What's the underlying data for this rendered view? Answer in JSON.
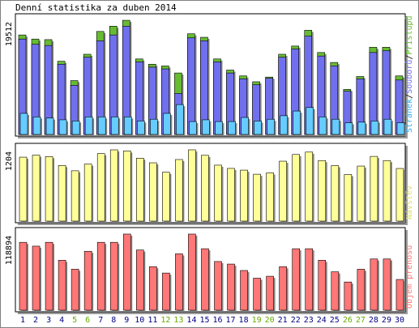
{
  "title": "Denní statistika za duben 2014",
  "colors": {
    "hits": "#66bb33",
    "files": "#7070ee",
    "pages": "#66ccff",
    "visits": "#ffff99",
    "kbytes": "#ff7777",
    "label_hits": "#66bb33",
    "label_files": "#7070ee",
    "label_pages": "#33aaee",
    "label_visits": "#dddd77",
    "label_kbytes": "#ff7777",
    "weekend_day": "#66aa00",
    "weekday": "#000080"
  },
  "chart_data": {
    "type": "bar",
    "categories": [
      "1",
      "2",
      "3",
      "4",
      "5",
      "6",
      "7",
      "8",
      "9",
      "10",
      "11",
      "12",
      "13",
      "14",
      "15",
      "16",
      "17",
      "18",
      "19",
      "20",
      "21",
      "22",
      "23",
      "24",
      "25",
      "26",
      "27",
      "28",
      "29",
      "30"
    ],
    "weekend_days": [
      5,
      6,
      12,
      13,
      19,
      20,
      26,
      27
    ],
    "panels": [
      {
        "id": "top",
        "ymax_label": "19512",
        "ymax": 19512,
        "legend_parts": [
          "Stránek",
          "/",
          "Souborů",
          "/",
          "Přístupů"
        ],
        "series": [
          {
            "name": "Přístupů",
            "values": [
              17000,
              16300,
              16200,
              12500,
              9200,
              13700,
              17600,
              18500,
              19500,
              12900,
              12000,
              11700,
              10500,
              17200,
              16600,
              12900,
              11000,
              10000,
              9000,
              9800,
              13700,
              15100,
              17800,
              14000,
              12300,
              7700,
              9900,
              14900,
              14900,
              10000
            ]
          },
          {
            "name": "Souborů",
            "values": [
              16300,
              15400,
              15200,
              12000,
              8400,
              13200,
              16000,
              17000,
              18500,
              12400,
              11500,
              11200,
              7000,
              16500,
              16000,
              12400,
              10500,
              9500,
              8500,
              9600,
              13200,
              14600,
              16800,
              13400,
              11700,
              7400,
              9500,
              14000,
              14300,
              9300
            ]
          },
          {
            "name": "Stránek",
            "values": [
              3600,
              3000,
              2800,
              2500,
              2300,
              3000,
              3000,
              3000,
              3000,
              2300,
              2600,
              3600,
              5100,
              2200,
              2500,
              2200,
              2200,
              2900,
              2300,
              2600,
              3200,
              4000,
              4600,
              3000,
              2600,
              2000,
              2100,
              2300,
              2600,
              2000
            ]
          }
        ]
      },
      {
        "id": "middle",
        "ymax_label": "1204",
        "ymax": 1204,
        "legend_parts": [
          "Návštěv"
        ],
        "series": [
          {
            "name": "Návštěv",
            "values": [
              1080,
              1114,
              1090,
              940,
              850,
              962,
              1140,
              1204,
              1185,
              1063,
              985,
              825,
              1040,
              1204,
              1111,
              945,
              890,
              861,
              792,
              815,
              1012,
              1125,
              1166,
              1023,
              937,
              787,
              930,
              1093,
              1023,
              889
            ]
          }
        ]
      },
      {
        "id": "bottom",
        "ymax_label": "118894",
        "ymax": 118894,
        "legend_parts": [
          "Objem přenosu"
        ],
        "series": [
          {
            "name": "Objem přenosu",
            "values": [
              106000,
              100000,
              106000,
              78000,
              64000,
              92000,
              106000,
              106000,
              118894,
              94000,
              68000,
              58000,
              88000,
              118894,
              96000,
              76000,
              72000,
              62000,
              50000,
              53000,
              68000,
              96000,
              96000,
              78000,
              60000,
              44000,
              64000,
              80000,
              80000,
              48000
            ]
          }
        ]
      }
    ]
  }
}
